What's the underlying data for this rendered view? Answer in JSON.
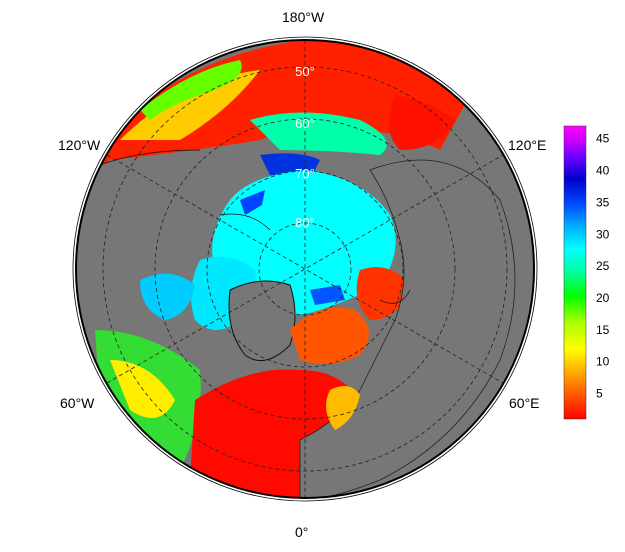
{
  "map": {
    "projection": "north-polar-stereographic",
    "ocean_land_fill": "#777777",
    "longitude_labels": [
      "180°W",
      "120°W",
      "120°E",
      "60°W",
      "60°E",
      "0°"
    ],
    "latitude_labels": [
      "50°",
      "60°",
      "70°",
      "80°"
    ]
  },
  "colorbar": {
    "range": [
      1,
      47
    ],
    "ticks": [
      "45",
      "40",
      "35",
      "30",
      "25",
      "20",
      "15",
      "10",
      "5"
    ],
    "tick_values": [
      45,
      40,
      35,
      30,
      25,
      20,
      15,
      10,
      5
    ],
    "colors": [
      "#ff0000",
      "#ff5500",
      "#ffaa00",
      "#ffff00",
      "#aaff00",
      "#00ff00",
      "#00ffaa",
      "#00ffff",
      "#00aaff",
      "#0044ff",
      "#0000cc",
      "#6600ff",
      "#cc00ff",
      "#ff00ff"
    ]
  }
}
